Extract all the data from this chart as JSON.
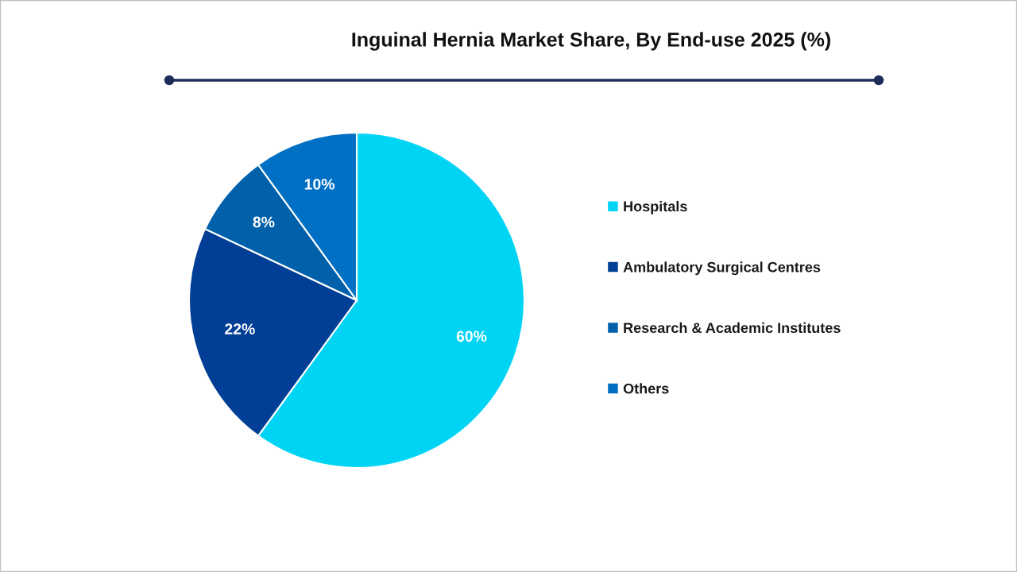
{
  "chart_data": {
    "type": "pie",
    "title": "Inguinal Hernia Market Share, By End-use 2025 (%)",
    "categories": [
      "Hospitals",
      "Ambulatory Surgical Centres",
      "Research & Academic Institutes",
      "Others"
    ],
    "values": [
      60,
      22,
      8,
      10
    ],
    "colors": [
      "#00d4f5",
      "#003f95",
      "#0060aa",
      "#0070c4"
    ],
    "value_labels": [
      "60%",
      "22%",
      "8%",
      "10%"
    ],
    "legend": "right"
  }
}
